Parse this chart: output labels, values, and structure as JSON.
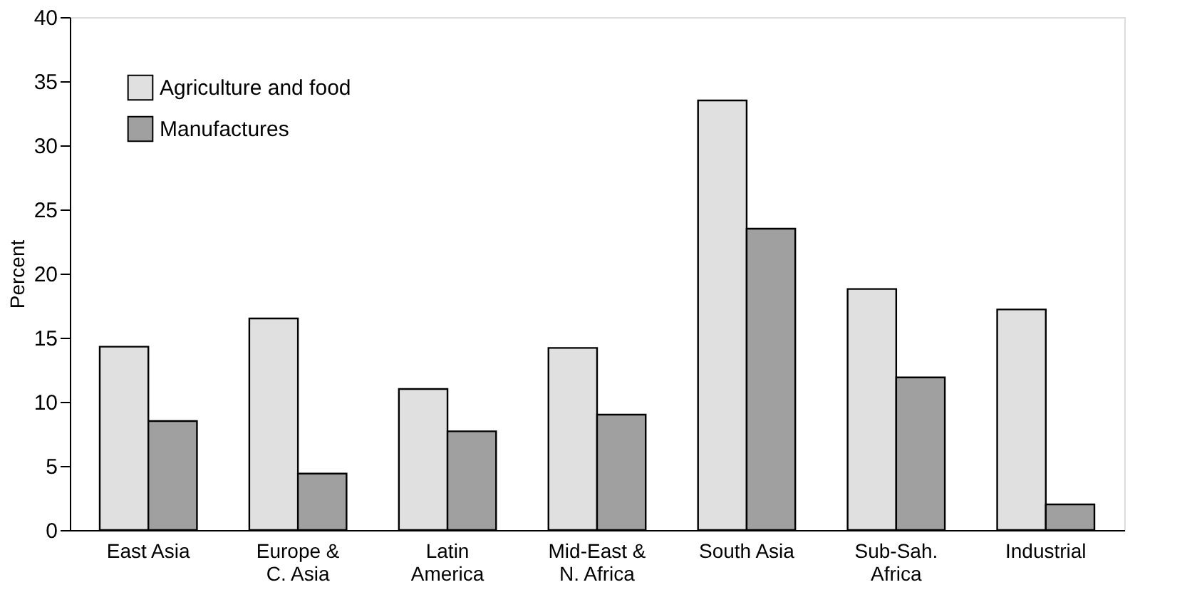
{
  "chart_data": {
    "type": "bar",
    "ylabel": "Percent",
    "categories": [
      "East Asia",
      "Europe &\nC. Asia",
      "Latin\nAmerica",
      "Mid-East &\nN. Africa",
      "South Asia",
      "Sub-Sah.\nAfrica",
      "Industrial"
    ],
    "series": [
      {
        "name": "Agriculture and food",
        "color": "#e0e0e0",
        "values": [
          14.3,
          16.5,
          11.0,
          14.2,
          33.5,
          18.8,
          17.2
        ]
      },
      {
        "name": "Manufactures",
        "color": "#a0a0a0",
        "values": [
          8.5,
          4.4,
          7.7,
          9.0,
          23.5,
          11.9,
          2.0
        ]
      }
    ],
    "ylim": [
      0,
      40
    ],
    "yticks": [
      0,
      5,
      10,
      15,
      20,
      25,
      30,
      35,
      40
    ],
    "grid": false,
    "legend": "top left"
  }
}
